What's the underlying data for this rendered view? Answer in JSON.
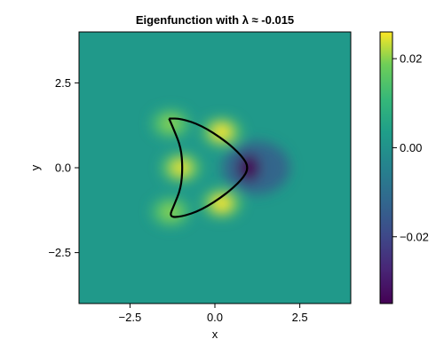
{
  "chart_data": {
    "type": "heatmap",
    "title": "Eigenfunction with λ ≈ -0.015",
    "xlabel": "x",
    "ylabel": "y",
    "xlim": [
      -4.0,
      4.0
    ],
    "ylim": [
      -4.0,
      4.0
    ],
    "x_ticks": [
      -2.5,
      0.0,
      2.5
    ],
    "x_tick_labels": [
      "−2.5",
      "0.0",
      "2.5"
    ],
    "y_ticks": [
      -2.5,
      0.0,
      2.5
    ],
    "y_tick_labels": [
      "−2.5",
      "0.0",
      "2.5"
    ],
    "grid": false,
    "colormap": "viridis",
    "colorbar": {
      "range": [
        -0.035,
        0.026
      ],
      "ticks": [
        -0.02,
        0.0,
        0.02
      ],
      "tick_labels": [
        "−0.02",
        "0.00",
        "0.02"
      ]
    },
    "boundary_curve": {
      "color": "#000000",
      "description": "kite-shaped boundary",
      "points": [
        [
          -1.35,
          1.45
        ],
        [
          -1.0,
          1.45
        ],
        [
          -0.4,
          1.25
        ],
        [
          0.3,
          0.8
        ],
        [
          0.8,
          0.35
        ],
        [
          1.0,
          0.0
        ],
        [
          0.8,
          -0.35
        ],
        [
          0.3,
          -0.8
        ],
        [
          -0.4,
          -1.25
        ],
        [
          -1.0,
          -1.45
        ],
        [
          -1.35,
          -1.45
        ],
        [
          -1.2,
          -1.1
        ],
        [
          -1.0,
          -0.6
        ],
        [
          -0.95,
          0.0
        ],
        [
          -1.0,
          0.6
        ],
        [
          -1.2,
          1.1
        ],
        [
          -1.35,
          1.45
        ]
      ]
    },
    "field_features": [
      {
        "x": -1.3,
        "y": 1.3,
        "value": 0.02
      },
      {
        "x": -1.3,
        "y": -1.3,
        "value": 0.02
      },
      {
        "x": -1.0,
        "y": 0.0,
        "value": 0.025
      },
      {
        "x": 0.2,
        "y": 1.05,
        "value": 0.026
      },
      {
        "x": 0.2,
        "y": -1.05,
        "value": 0.026
      },
      {
        "x": 1.0,
        "y": 0.0,
        "value": -0.035
      }
    ],
    "background_value": 0.002
  }
}
